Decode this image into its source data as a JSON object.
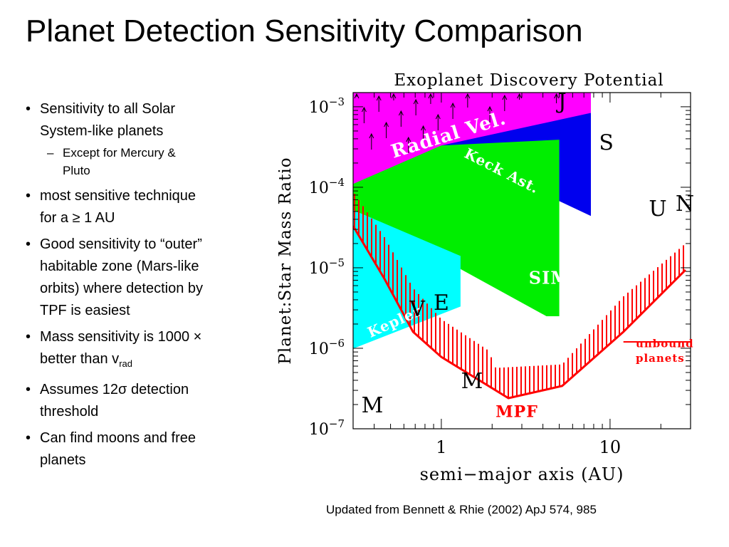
{
  "slide": {
    "title": "Planet Detection Sensitivity Comparison",
    "bullets": [
      {
        "a": "Sensitivity to all Solar",
        "b": "System-like planets"
      },
      {
        "a": "Except for Mercury &",
        "b": "Pluto"
      },
      {
        "a": "most sensitive technique",
        "b": "for a ≥ 1 AU"
      },
      {
        "a": "Good sensitivity to “outer”",
        "b": "habitable zone (Mars-like",
        "c": "orbits) where detection by",
        "d": "TPF is easiest"
      },
      {
        "a": "Mass sensitivity is  1000 ×",
        "b": "better than v",
        "sub": "rad"
      },
      {
        "a": "Assumes 12σ detection",
        "b": "threshold"
      },
      {
        "a": "Can find moons and free",
        "b": "planets"
      }
    ],
    "caption": "Updated from  Bennett & Rhie (2002) ApJ 574, 985"
  },
  "chart_data": {
    "type": "area",
    "title": "Exoplanet Discovery Potential",
    "xlabel": "semi−major axis (AU)",
    "ylabel": "Planet:Star Mass Ratio",
    "x_scale": "log",
    "y_scale": "log",
    "xlim": [
      0.3,
      30
    ],
    "ylim": [
      1e-07,
      0.0015
    ],
    "x_ticks": [
      {
        "value": 1,
        "label": "1"
      },
      {
        "value": 10,
        "label": "10"
      }
    ],
    "y_ticks": [
      {
        "value": 0.001,
        "base": "10",
        "exp": "−3"
      },
      {
        "value": 0.0001,
        "base": "10",
        "exp": "−4"
      },
      {
        "value": 1e-05,
        "base": "10",
        "exp": "−5"
      },
      {
        "value": 1e-06,
        "base": "10",
        "exp": "−6"
      },
      {
        "value": 1e-07,
        "base": "10",
        "exp": "−7"
      }
    ],
    "regions": [
      {
        "name": "Radial Vel.",
        "color": "#ff00ff",
        "points": [
          [
            0.3,
            0.0015
          ],
          [
            7.7,
            0.0015
          ],
          [
            7.7,
            0.00084
          ],
          [
            0.3,
            0.00011
          ]
        ]
      },
      {
        "name": "Keck Ast.",
        "color": "#0000ee",
        "points": [
          [
            1.0,
            0.00033
          ],
          [
            7.7,
            0.00084
          ],
          [
            7.7,
            4.4e-05
          ]
        ]
      },
      {
        "name": "SIM",
        "color": "#00ee00",
        "points": [
          [
            0.3,
            0.00011
          ],
          [
            1.0,
            0.00033
          ],
          [
            5.0,
            0.00039
          ],
          [
            5.0,
            2.5e-06
          ],
          [
            4.2,
            2.5e-06
          ],
          [
            0.3,
            5.2e-05
          ]
        ]
      },
      {
        "name": "Kepler",
        "color": "#00ffff",
        "points": [
          [
            0.3,
            5.2e-05
          ],
          [
            1.3,
            1.4e-05
          ],
          [
            1.3,
            3.3e-06
          ],
          [
            0.3,
            9.9e-07
          ]
        ]
      }
    ],
    "mpf": {
      "name": "MPF",
      "color": "#ff0000",
      "boundary": [
        [
          0.3,
          3.3e-05
        ],
        [
          0.46,
          7.3e-06
        ],
        [
          0.68,
          1.6e-06
        ],
        [
          1.0,
          7.8e-07
        ],
        [
          2.5,
          2.4e-07
        ],
        [
          5.2,
          3.4e-07
        ],
        [
          12.0,
          1.6e-06
        ],
        [
          28.0,
          9.4e-06
        ]
      ],
      "hatch_top": [
        [
          0.3,
          8.8e-05
        ],
        [
          0.46,
          2.4e-05
        ],
        [
          0.68,
          5.6e-06
        ],
        [
          1.0,
          2.3e-06
        ],
        [
          1.9,
          9.4e-07
        ],
        [
          2.1,
          5.7e-07
        ],
        [
          5.2,
          6.3e-07
        ],
        [
          12.0,
          4.4e-06
        ],
        [
          28.0,
          2e-05
        ]
      ],
      "unbound_level": 1.2e-06,
      "unbound_label_1": "unbound",
      "unbound_label_2": "planets"
    },
    "planets": [
      {
        "label": "M",
        "x": 0.39,
        "y": 1.6e-07,
        "color": "#000000"
      },
      {
        "label": "V",
        "x": 0.72,
        "y": 2.5e-06,
        "color": "#000000"
      },
      {
        "label": "E",
        "x": 1.0,
        "y": 3e-06,
        "color": "#000000"
      },
      {
        "label": "M",
        "x": 1.52,
        "y": 3.2e-07,
        "color": "#000000"
      },
      {
        "label": "J",
        "x": 5.2,
        "y": 0.00095,
        "color": "#000000"
      },
      {
        "label": "S",
        "x": 9.5,
        "y": 0.00029,
        "color": "#000000"
      },
      {
        "label": "U",
        "x": 19.2,
        "y": 4.4e-05,
        "color": "#000000"
      },
      {
        "label": "N",
        "x": 30.0,
        "y": 5.1e-05,
        "color": "#000000"
      }
    ],
    "rv_arrow_count": 32
  }
}
